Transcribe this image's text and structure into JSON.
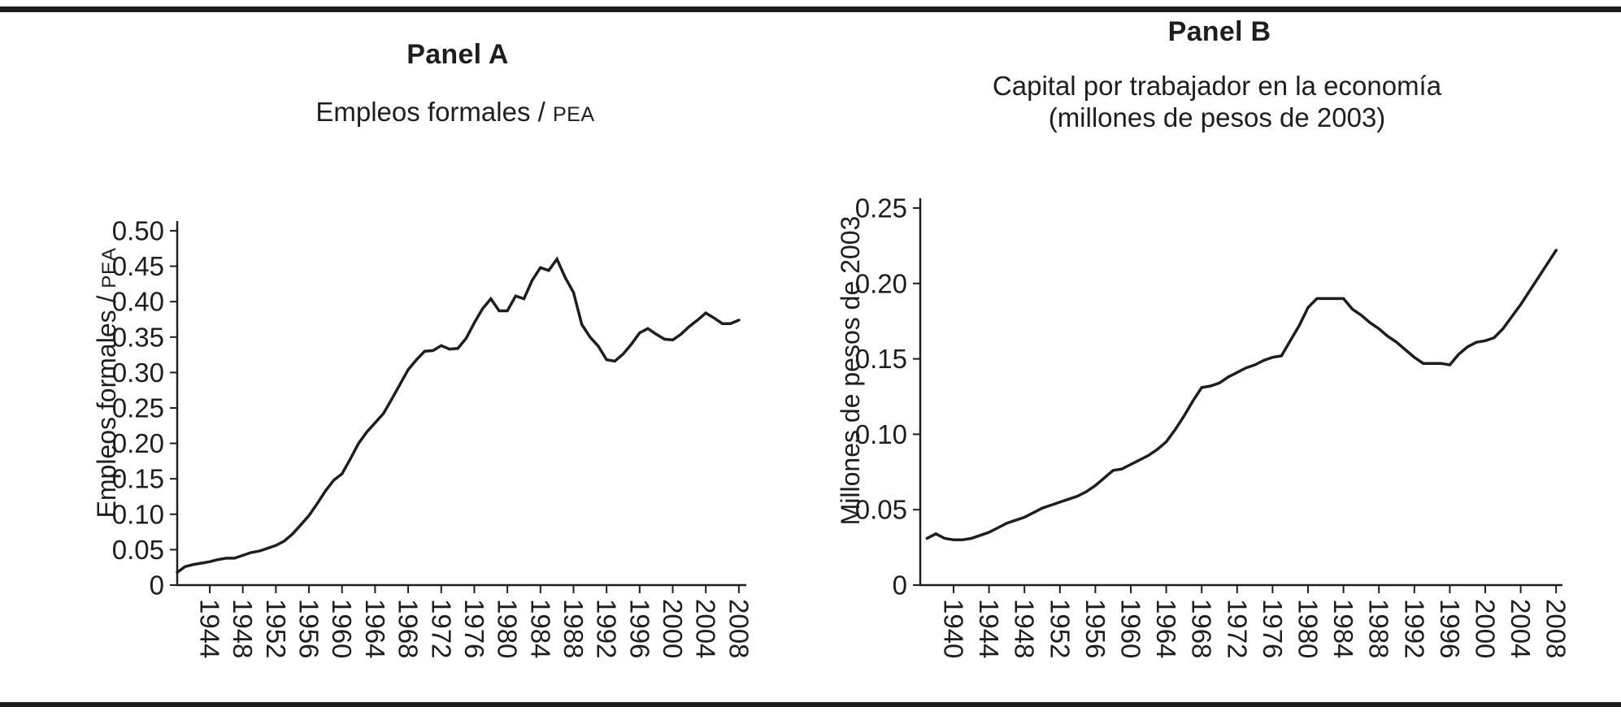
{
  "page": {
    "background": "#ffffff",
    "rule_color": "#1c1c1c",
    "line_color": "#1e1e1e"
  },
  "panel_a": {
    "title": "Panel A",
    "subtitle_main": "Empleos formales / ",
    "subtitle_pea": "PEA",
    "y_axis_label_main": "Empleos formales / ",
    "y_axis_label_pea": "PEA"
  },
  "panel_b": {
    "title": "Panel B",
    "subtitle_line1": "Capital por trabajador en la economía",
    "subtitle_line2": "(millones de pesos de 2003)",
    "y_axis_label": "Millones de pesos de 2003"
  },
  "chart_data": [
    {
      "type": "line",
      "panel": "Panel A",
      "title": "Empleos formales / PEA",
      "xlabel": "",
      "ylabel": "Empleos formales / PEA",
      "ylim": [
        0,
        0.5
      ],
      "grid": false,
      "legend": "none",
      "line_color": "#1e1e1e",
      "y_ticks": [
        0,
        0.05,
        0.1,
        0.15,
        0.2,
        0.25,
        0.3,
        0.35,
        0.4,
        0.45,
        0.5
      ],
      "y_tick_labels": [
        "0",
        "0.05",
        "0.10",
        "0.15",
        "0.20",
        "0.25",
        "0.30",
        "0.35",
        "0.40",
        "0.45",
        "0.50"
      ],
      "x_tick_years": [
        1944,
        1948,
        1952,
        1956,
        1960,
        1964,
        1968,
        1972,
        1976,
        1980,
        1984,
        1988,
        1992,
        1996,
        2000,
        2004,
        2008
      ],
      "x_tick_labels": [
        "1944",
        "1948",
        "1952",
        "1956",
        "1960",
        "1964",
        "1968",
        "1972",
        "1976",
        "1980",
        "1984",
        "1988",
        "1992",
        "1996",
        "2000",
        "2004",
        "2008"
      ],
      "series": [
        {
          "name": "Empleos formales / PEA",
          "x": [
            1940,
            1941,
            1942,
            1943,
            1944,
            1945,
            1946,
            1947,
            1948,
            1949,
            1950,
            1951,
            1952,
            1953,
            1954,
            1955,
            1956,
            1957,
            1958,
            1959,
            1960,
            1961,
            1962,
            1963,
            1964,
            1965,
            1966,
            1967,
            1968,
            1969,
            1970,
            1971,
            1972,
            1973,
            1974,
            1975,
            1976,
            1977,
            1978,
            1979,
            1980,
            1981,
            1982,
            1983,
            1984,
            1985,
            1986,
            1987,
            1988,
            1989,
            1990,
            1991,
            1992,
            1993,
            1994,
            1995,
            1996,
            1997,
            1998,
            1999,
            2000,
            2001,
            2002,
            2003,
            2004,
            2005,
            2006,
            2007,
            2008
          ],
          "y": [
            0.018,
            0.026,
            0.029,
            0.031,
            0.033,
            0.036,
            0.038,
            0.038,
            0.042,
            0.046,
            0.048,
            0.052,
            0.056,
            0.062,
            0.072,
            0.085,
            0.098,
            0.115,
            0.133,
            0.148,
            0.157,
            0.178,
            0.2,
            0.216,
            0.229,
            0.242,
            0.262,
            0.283,
            0.304,
            0.318,
            0.33,
            0.331,
            0.338,
            0.333,
            0.334,
            0.348,
            0.37,
            0.39,
            0.404,
            0.387,
            0.387,
            0.408,
            0.404,
            0.43,
            0.448,
            0.444,
            0.46,
            0.434,
            0.413,
            0.368,
            0.35,
            0.337,
            0.318,
            0.316,
            0.326,
            0.34,
            0.356,
            0.362,
            0.354,
            0.347,
            0.346,
            0.354,
            0.365,
            0.374,
            0.384,
            0.377,
            0.369,
            0.369,
            0.374
          ]
        }
      ]
    },
    {
      "type": "line",
      "panel": "Panel B",
      "title": "Capital por trabajador en la economía (millones de pesos de 2003)",
      "xlabel": "",
      "ylabel": "Millones de pesos de 2003",
      "ylim": [
        0,
        0.25
      ],
      "grid": false,
      "legend": "none",
      "line_color": "#1e1e1e",
      "y_ticks": [
        0,
        0.05,
        0.1,
        0.15,
        0.2,
        0.25
      ],
      "y_tick_labels": [
        "0",
        "0.05",
        "0.10",
        "0.15",
        "0.20",
        "0.25"
      ],
      "x_tick_years": [
        1940,
        1944,
        1948,
        1952,
        1956,
        1960,
        1964,
        1968,
        1972,
        1976,
        1980,
        1984,
        1988,
        1992,
        1996,
        2000,
        2004,
        2008
      ],
      "x_tick_labels": [
        "1940",
        "1944",
        "1948",
        "1952",
        "1956",
        "1960",
        "1964",
        "1968",
        "1972",
        "1976",
        "1980",
        "1984",
        "1988",
        "1992",
        "1996",
        "2000",
        "2004",
        "2008"
      ],
      "series": [
        {
          "name": "Capital por trabajador",
          "x": [
            1937,
            1938,
            1939,
            1940,
            1941,
            1942,
            1943,
            1944,
            1945,
            1946,
            1947,
            1948,
            1949,
            1950,
            1951,
            1952,
            1953,
            1954,
            1955,
            1956,
            1957,
            1958,
            1959,
            1960,
            1961,
            1962,
            1963,
            1964,
            1965,
            1966,
            1967,
            1968,
            1969,
            1970,
            1971,
            1972,
            1973,
            1974,
            1975,
            1976,
            1977,
            1978,
            1979,
            1980,
            1981,
            1982,
            1983,
            1984,
            1985,
            1986,
            1987,
            1988,
            1989,
            1990,
            1991,
            1992,
            1993,
            1994,
            1995,
            1996,
            1997,
            1998,
            1999,
            2000,
            2001,
            2002,
            2003,
            2004,
            2005,
            2006,
            2007,
            2008
          ],
          "y": [
            0.031,
            0.034,
            0.031,
            0.03,
            0.03,
            0.031,
            0.033,
            0.035,
            0.038,
            0.041,
            0.043,
            0.045,
            0.048,
            0.051,
            0.053,
            0.055,
            0.057,
            0.059,
            0.062,
            0.066,
            0.071,
            0.076,
            0.077,
            0.08,
            0.083,
            0.086,
            0.09,
            0.095,
            0.103,
            0.112,
            0.122,
            0.131,
            0.132,
            0.134,
            0.138,
            0.141,
            0.144,
            0.146,
            0.149,
            0.151,
            0.152,
            0.162,
            0.172,
            0.184,
            0.19,
            0.19,
            0.19,
            0.19,
            0.183,
            0.179,
            0.174,
            0.17,
            0.165,
            0.161,
            0.156,
            0.151,
            0.147,
            0.147,
            0.147,
            0.146,
            0.153,
            0.158,
            0.161,
            0.162,
            0.164,
            0.17,
            0.178,
            0.186,
            0.195,
            0.204,
            0.213,
            0.222
          ]
        }
      ]
    }
  ]
}
